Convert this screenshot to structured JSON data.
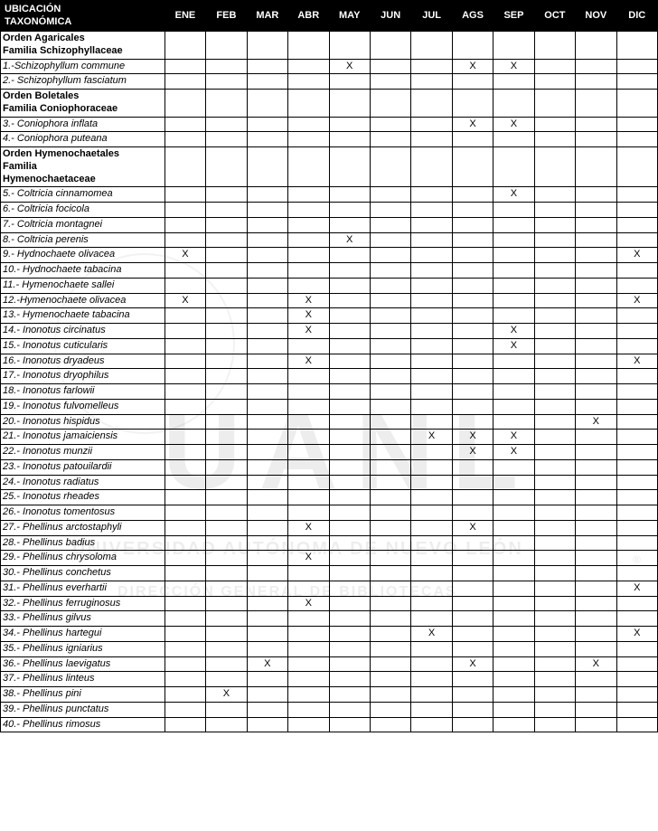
{
  "table": {
    "header_label": "UBICACIÓN\nTAXONÓMICA",
    "months": [
      "ENE",
      "FEB",
      "MAR",
      "ABR",
      "MAY",
      "JUN",
      "JUL",
      "AGS",
      "SEP",
      "OCT",
      "NOV",
      "DIC"
    ],
    "rows": [
      {
        "type": "header",
        "label": "Orden Agaricales\nFamilia Schizophyllaceae"
      },
      {
        "type": "species",
        "label": "1.-Schizophyllum commune",
        "marks": {
          "MAY": "X",
          "AGS": "X",
          "SEP": "X"
        }
      },
      {
        "type": "species",
        "label": "2.- Schizophyllum fasciatum",
        "marks": {}
      },
      {
        "type": "header",
        "label": "Orden Boletales\nFamilia Coniophoraceae"
      },
      {
        "type": "species",
        "label": "3.- Coniophora inflata",
        "marks": {
          "AGS": "X",
          "SEP": "X"
        }
      },
      {
        "type": "species",
        "label": "4.- Coniophora puteana",
        "marks": {}
      },
      {
        "type": "header",
        "label": "Orden Hymenochaetales\n Familia\nHymenochaetaceae"
      },
      {
        "type": "species",
        "label": "5.- Coltricia cinnamomea",
        "marks": {
          "SEP": "X"
        }
      },
      {
        "type": "species",
        "label": "6.- Coltricia focicola",
        "marks": {}
      },
      {
        "type": "species",
        "label": "7.- Coltricia montagnei",
        "marks": {}
      },
      {
        "type": "species",
        "label": "8.- Coltricia perenis",
        "marks": {
          "MAY": "X"
        }
      },
      {
        "type": "species",
        "label": "9.- Hydnochaete olivacea",
        "marks": {
          "ENE": "X",
          "DIC": "X"
        }
      },
      {
        "type": "species",
        "label": "10.- Hydnochaete tabacina",
        "marks": {}
      },
      {
        "type": "species",
        "label": "11.- Hymenochaete sallei",
        "marks": {}
      },
      {
        "type": "species",
        "label": "12.-Hymenochaete olivacea",
        "marks": {
          "ENE": "X",
          "ABR": "X",
          "DIC": "X"
        }
      },
      {
        "type": "species",
        "label": "13.- Hymenochaete tabacina",
        "marks": {
          "ABR": "X"
        }
      },
      {
        "type": "species",
        "label": "14.- Inonotus circinatus",
        "marks": {
          "ABR": "X",
          "SEP": "X"
        }
      },
      {
        "type": "species",
        "label": "15.- Inonotus cuticularis",
        "marks": {
          "SEP": "X"
        }
      },
      {
        "type": "species",
        "label": "16.- Inonotus dryadeus",
        "marks": {
          "ABR": "X",
          "DIC": "X"
        }
      },
      {
        "type": "species",
        "label": "17.- Inonotus dryophilus",
        "marks": {}
      },
      {
        "type": "species",
        "label": "18.- Inonotus farlowii",
        "marks": {}
      },
      {
        "type": "species",
        "label": "19.- Inonotus fulvomelleus",
        "marks": {}
      },
      {
        "type": "species",
        "label": "20.- Inonotus hispidus",
        "marks": {
          "NOV": "X"
        }
      },
      {
        "type": "species",
        "label": "21.- Inonotus jamaiciensis",
        "marks": {
          "JUL": "X",
          "AGS": "X",
          "SEP": "X"
        }
      },
      {
        "type": "species",
        "label": "22.- Inonotus munzii",
        "marks": {
          "AGS": "X",
          "SEP": "X"
        }
      },
      {
        "type": "species",
        "label": "23.- Inonotus patouilardii",
        "marks": {}
      },
      {
        "type": "species",
        "label": "24.- Inonotus radiatus",
        "marks": {}
      },
      {
        "type": "species",
        "label": "25.- Inonotus rheades",
        "marks": {}
      },
      {
        "type": "species",
        "label": "26.- Inonotus tomentosus",
        "marks": {}
      },
      {
        "type": "species",
        "label": "27.- Phellinus arctostaphyli",
        "marks": {
          "ABR": "X",
          "AGS": "X"
        }
      },
      {
        "type": "species",
        "label": "28.- Phellinus badius",
        "marks": {}
      },
      {
        "type": "species",
        "label": "29.- Phellinus chrysoloma",
        "marks": {
          "ABR": "X"
        }
      },
      {
        "type": "species",
        "label": "30.- Phellinus conchetus",
        "marks": {}
      },
      {
        "type": "species",
        "label": "31.- Phellinus everhartii",
        "marks": {
          "DIC": "X"
        }
      },
      {
        "type": "species",
        "label": "32.- Phellinus ferruginosus",
        "marks": {
          "ABR": "X"
        }
      },
      {
        "type": "species",
        "label": "33.- Phellinus gilvus",
        "marks": {}
      },
      {
        "type": "species",
        "label": "34.- Phellinus hartegui",
        "marks": {
          "JUL": "X",
          "DIC": "X"
        }
      },
      {
        "type": "species",
        "label": "35.- Phellinus igniarius",
        "marks": {}
      },
      {
        "type": "species",
        "label": "36.- Phellinus laevigatus",
        "marks": {
          "MAR": "X",
          "AGS": "X",
          "NOV": "X"
        }
      },
      {
        "type": "species",
        "label": "37.- Phellinus linteus",
        "marks": {}
      },
      {
        "type": "species",
        "label": "38.- Phellinus  pini",
        "marks": {
          "FEB": "X"
        }
      },
      {
        "type": "species",
        "label": "39.- Phellinus punctatus",
        "marks": {}
      },
      {
        "type": "species",
        "label": "40.- Phellinus rimosus",
        "marks": {}
      }
    ]
  },
  "watermarks": {
    "uanl": "UANL",
    "line1": "UNIVERSIDAD AUTÓNOMA DE NUEVO LEÓN",
    "line2": "DIRECCIÓN GENERAL DE BIBLIOTECAS",
    "reg": "®"
  },
  "colors": {
    "header_bg": "#000000",
    "header_fg": "#ffffff",
    "border": "#000000",
    "background": "#ffffff",
    "watermark": "rgba(0,0,0,0.07)"
  }
}
